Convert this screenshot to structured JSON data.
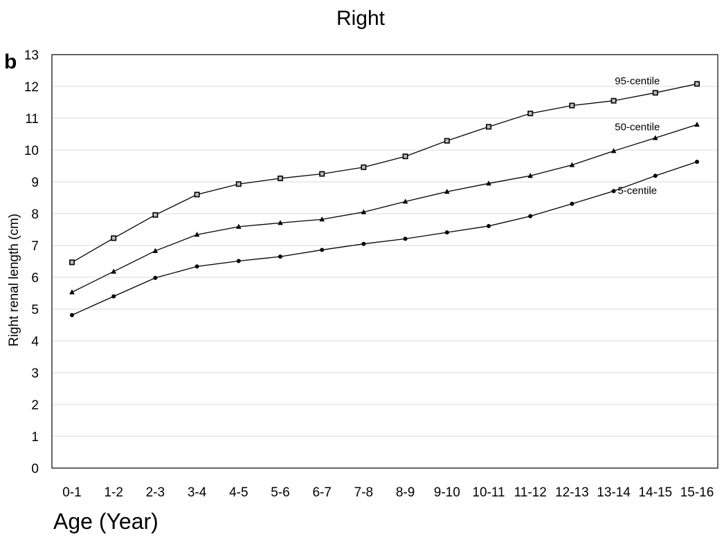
{
  "chart_data": {
    "type": "line",
    "title": "Right",
    "panel_label": "b",
    "xlabel": "Age (Year)",
    "ylabel": "Right renal length (cm)",
    "ylim": [
      0,
      13
    ],
    "yticks": [
      0,
      1,
      2,
      3,
      4,
      5,
      6,
      7,
      8,
      9,
      10,
      11,
      12,
      13
    ],
    "grid": "horizontal",
    "categories": [
      "0-1",
      "1-2",
      "2-3",
      "3-4",
      "4-5",
      "5-6",
      "6-7",
      "7-8",
      "8-9",
      "9-10",
      "10-11",
      "11-12",
      "12-13",
      "13-14",
      "14-15",
      "15-16"
    ],
    "series": [
      {
        "name": "95-centile",
        "marker": "square",
        "values": [
          6.47,
          7.23,
          7.96,
          8.6,
          8.93,
          9.11,
          9.25,
          9.46,
          9.8,
          10.29,
          10.73,
          11.15,
          11.4,
          11.55,
          11.8,
          12.08
        ]
      },
      {
        "name": "50-centile",
        "marker": "triangle",
        "values": [
          5.53,
          6.18,
          6.83,
          7.34,
          7.59,
          7.71,
          7.82,
          8.05,
          8.38,
          8.69,
          8.95,
          9.19,
          9.53,
          9.97,
          10.38,
          10.8
        ]
      },
      {
        "name": "5-centile",
        "marker": "circle",
        "values": [
          4.81,
          5.4,
          5.98,
          6.34,
          6.51,
          6.65,
          6.86,
          7.05,
          7.21,
          7.41,
          7.61,
          7.92,
          8.31,
          8.71,
          9.19,
          9.63
        ]
      }
    ]
  }
}
